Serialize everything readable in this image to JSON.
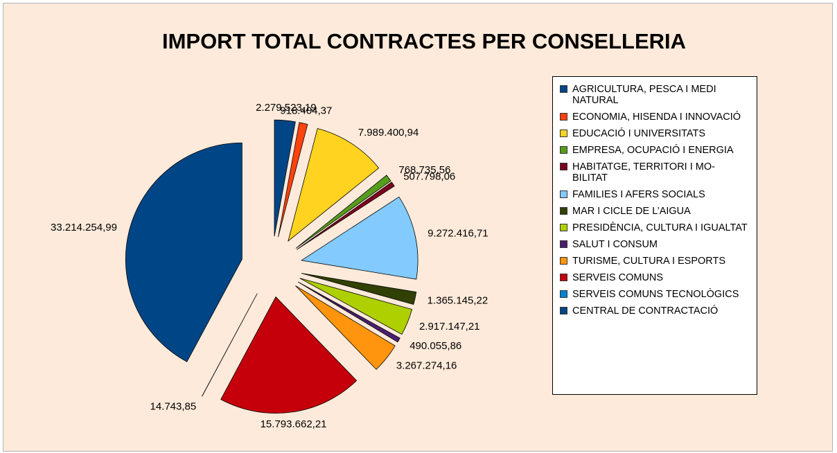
{
  "chart_data": {
    "type": "pie",
    "title": "IMPORT TOTAL CONTRACTES PER CONSELLERIA",
    "categories": [
      "AGRICULTURA, PESCA I MEDI NATURAL",
      "ECONOMIA, HISENDA I INNOVACIÓ",
      "EDUCACIÓ I UNIVERSITATS",
      "EMPRESA, OCUPACIÓ I ENERGIA",
      "HABITATGE, TERRITORI I MO-BILITAT",
      "FAMILIES I AFERS SOCIALS",
      "MAR I CICLE DE L’AIGUA",
      "PRESIDÈNCIA, CULTURA I IGUALTAT",
      "SALUT I CONSUM",
      "TURISME, CULTURA I ESPORTS",
      "SERVEIS COMUNS",
      "SERVEIS COMUNS TECNOLÒGICS",
      "CENTRAL DE CONTRACTACIÓ"
    ],
    "values": [
      2279523.19,
      918404.37,
      7989400.94,
      768735.56,
      507798.06,
      9272416.71,
      1365145.22,
      2917147.21,
      490055.86,
      3267274.16,
      15793662.21,
      14743.85,
      33214254.99
    ],
    "value_labels": [
      "2.279.523,19",
      "918.404,37",
      "7.989.400,94",
      "768.735,56",
      "507.798,06",
      "9.272.416,71",
      "1.365.145,22",
      "2.917.147,21",
      "490.055,86",
      "3.267.274,16",
      "15.793.662,21",
      "14.743,85",
      "33.214.254,99"
    ],
    "colors": [
      "#004586",
      "#ff420e",
      "#ffd320",
      "#579d1c",
      "#7e0021",
      "#83caff",
      "#314004",
      "#aecf00",
      "#4b1f6f",
      "#ff950e",
      "#c5000b",
      "#0084d1",
      "#004586"
    ],
    "legend": "right"
  }
}
